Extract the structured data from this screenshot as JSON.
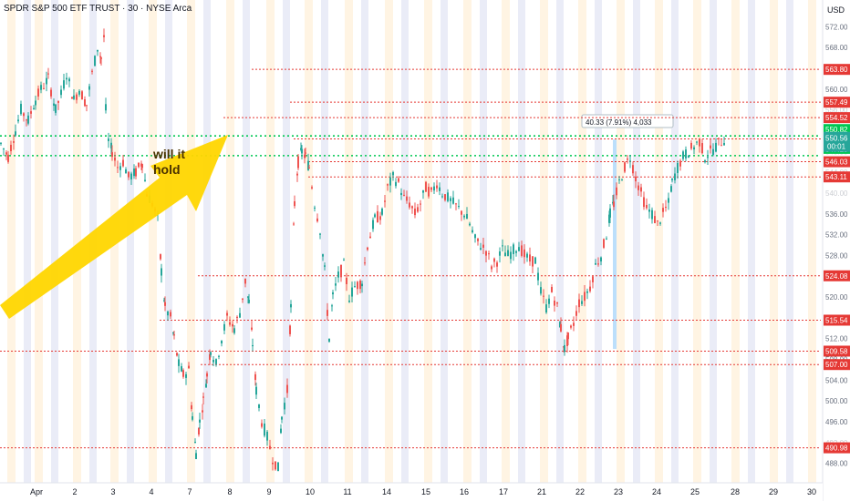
{
  "header": {
    "symbol_title": "SPDR S&P 500 ETF TRUST · 30 · NYSE Arca",
    "currency": "USD"
  },
  "colors": {
    "up": "#26a69a",
    "down": "#ef5350",
    "level": "#e53935",
    "green_level": "#00c853",
    "arrow": "#ffd600",
    "background": "#ffffff",
    "axis_text": "#131722",
    "session_pre": "#fff3e0",
    "session_post": "#e8eaf6",
    "measure": "#90caf9"
  },
  "chart_data": {
    "type": "candlestick",
    "ylim": [
      486,
      574
    ],
    "y_ticks": [
      488,
      492,
      496,
      500,
      504,
      508,
      512,
      516,
      520,
      524,
      528,
      532,
      536,
      540,
      544,
      548,
      552,
      556,
      560,
      564,
      568,
      572
    ],
    "y_ticks_partial": [
      492,
      540,
      544,
      548,
      552,
      556,
      564
    ],
    "x_labels": [
      "Apr",
      "2",
      "3",
      "4",
      "7",
      "8",
      "9",
      "10",
      "11",
      "14",
      "15",
      "16",
      "17",
      "21",
      "22",
      "23",
      "24",
      "25",
      "28",
      "29",
      "30"
    ],
    "support_resistance_levels": [
      563.8,
      557.49,
      554.52,
      550.43,
      546.03,
      543.11,
      524.08,
      515.54,
      509.58,
      507.0,
      490.98
    ],
    "green_levels": [
      551.0,
      547.2
    ],
    "current_price": 550.56,
    "countdown": "00:01",
    "price_tags_partial": [
      "550.82",
      "547.23"
    ],
    "annotation_text": "will it hold",
    "measure_label": "40.33 (7.91%) 4,033",
    "measure_range": [
      510,
      550.3
    ],
    "price_path": [
      [
        0,
        549.5
      ],
      [
        8,
        547
      ],
      [
        16,
        552
      ],
      [
        22,
        556
      ],
      [
        30,
        554
      ],
      [
        38,
        558
      ],
      [
        44,
        560
      ],
      [
        52,
        562
      ],
      [
        60,
        556
      ],
      [
        66,
        559
      ],
      [
        72,
        563
      ],
      [
        80,
        558
      ],
      [
        86,
        560
      ],
      [
        94,
        557
      ],
      [
        100,
        563
      ],
      [
        106,
        568
      ],
      [
        110,
        566
      ],
      [
        113,
        570
      ],
      [
        115,
        556
      ],
      [
        118,
        550
      ],
      [
        122,
        548
      ],
      [
        128,
        545
      ],
      [
        134,
        546
      ],
      [
        140,
        543
      ],
      [
        148,
        544
      ],
      [
        155,
        546
      ],
      [
        160,
        540
      ],
      [
        166,
        538
      ],
      [
        172,
        535
      ],
      [
        176,
        525
      ],
      [
        180,
        518
      ],
      [
        186,
        516
      ],
      [
        190,
        512
      ],
      [
        195,
        507
      ],
      [
        200,
        505
      ],
      [
        206,
        506
      ],
      [
        210,
        497
      ],
      [
        214,
        490
      ],
      [
        218,
        496
      ],
      [
        222,
        500
      ],
      [
        226,
        505
      ],
      [
        230,
        510
      ],
      [
        236,
        507
      ],
      [
        242,
        512
      ],
      [
        248,
        516
      ],
      [
        256,
        514
      ],
      [
        262,
        517
      ],
      [
        268,
        523
      ],
      [
        272,
        519
      ],
      [
        276,
        511
      ],
      [
        280,
        502
      ],
      [
        286,
        496
      ],
      [
        292,
        493
      ],
      [
        298,
        489
      ],
      [
        304,
        487
      ],
      [
        308,
        497
      ],
      [
        314,
        502
      ],
      [
        318,
        518
      ],
      [
        322,
        538
      ],
      [
        326,
        546
      ],
      [
        330,
        548
      ],
      [
        334,
        547
      ],
      [
        338,
        545
      ],
      [
        344,
        538
      ],
      [
        350,
        533
      ],
      [
        355,
        525
      ],
      [
        360,
        512
      ],
      [
        364,
        520
      ],
      [
        370,
        524
      ],
      [
        376,
        526
      ],
      [
        382,
        520
      ],
      [
        388,
        522
      ],
      [
        396,
        523
      ],
      [
        402,
        530
      ],
      [
        410,
        535
      ],
      [
        418,
        536
      ],
      [
        424,
        541
      ],
      [
        430,
        543
      ],
      [
        436,
        542
      ],
      [
        442,
        539
      ],
      [
        448,
        538
      ],
      [
        454,
        536
      ],
      [
        460,
        538
      ],
      [
        466,
        541
      ],
      [
        472,
        540
      ],
      [
        478,
        542
      ],
      [
        484,
        540
      ],
      [
        490,
        539
      ],
      [
        496,
        538
      ],
      [
        502,
        537
      ],
      [
        508,
        536
      ],
      [
        514,
        534
      ],
      [
        520,
        531
      ],
      [
        526,
        530
      ],
      [
        532,
        529
      ],
      [
        538,
        526
      ],
      [
        544,
        527
      ],
      [
        550,
        529
      ],
      [
        556,
        528
      ],
      [
        562,
        529
      ],
      [
        568,
        530
      ],
      [
        574,
        528
      ],
      [
        580,
        527
      ],
      [
        586,
        527
      ],
      [
        592,
        521
      ],
      [
        598,
        518
      ],
      [
        604,
        521
      ],
      [
        610,
        518
      ],
      [
        614,
        514
      ],
      [
        618,
        510
      ],
      [
        622,
        512
      ],
      [
        628,
        515
      ],
      [
        634,
        519
      ],
      [
        640,
        520
      ],
      [
        646,
        522
      ],
      [
        652,
        526
      ],
      [
        658,
        528
      ],
      [
        664,
        532
      ],
      [
        668,
        536
      ],
      [
        672,
        538
      ],
      [
        678,
        542
      ],
      [
        684,
        545
      ],
      [
        690,
        547
      ],
      [
        696,
        543
      ],
      [
        702,
        540
      ],
      [
        708,
        537
      ],
      [
        714,
        536
      ],
      [
        720,
        534
      ],
      [
        726,
        536
      ],
      [
        732,
        538
      ],
      [
        736,
        542
      ],
      [
        742,
        545
      ],
      [
        748,
        547
      ],
      [
        754,
        548
      ],
      [
        760,
        549
      ],
      [
        766,
        550
      ],
      [
        772,
        547
      ],
      [
        778,
        548
      ],
      [
        784,
        549
      ],
      [
        790,
        550
      ],
      [
        796,
        550.6
      ]
    ]
  }
}
